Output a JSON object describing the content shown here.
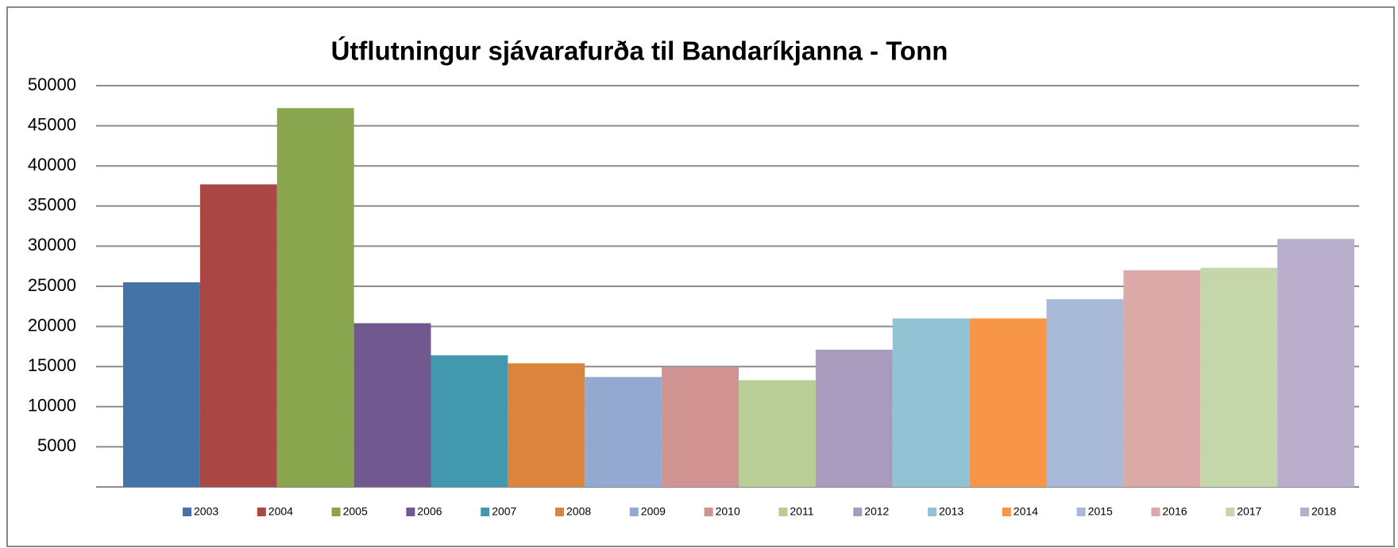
{
  "chart_data": {
    "type": "bar",
    "title": "Útflutningur sjávarafurða til Bandaríkjanna - Tonn",
    "series": [
      {
        "name": "2003",
        "color": "#4572a7",
        "values": [
          25500
        ]
      },
      {
        "name": "2004",
        "color": "#aa4643",
        "values": [
          37700
        ]
      },
      {
        "name": "2005",
        "color": "#89a54e",
        "values": [
          47200
        ]
      },
      {
        "name": "2006",
        "color": "#71588f",
        "values": [
          20400
        ]
      },
      {
        "name": "2007",
        "color": "#4198af",
        "values": [
          16400
        ]
      },
      {
        "name": "2008",
        "color": "#db843d",
        "values": [
          15400
        ]
      },
      {
        "name": "2009",
        "color": "#93a9cf",
        "values": [
          13700
        ]
      },
      {
        "name": "2010",
        "color": "#d19392",
        "values": [
          14900
        ]
      },
      {
        "name": "2011",
        "color": "#b9cd96",
        "values": [
          13300
        ]
      },
      {
        "name": "2012",
        "color": "#a99bbd",
        "values": [
          17100
        ]
      },
      {
        "name": "2013",
        "color": "#91c3d5",
        "values": [
          21000
        ]
      },
      {
        "name": "2014",
        "color": "#f79646",
        "values": [
          21000
        ]
      },
      {
        "name": "2015",
        "color": "#a9b9d8",
        "values": [
          23400
        ]
      },
      {
        "name": "2016",
        "color": "#dba9a8",
        "values": [
          27000
        ]
      },
      {
        "name": "2017",
        "color": "#c6d6ab",
        "values": [
          27300
        ]
      },
      {
        "name": "2018",
        "color": "#b9aecb",
        "values": [
          30900
        ]
      }
    ],
    "ylim": [
      0,
      50000
    ],
    "yticks": [
      5000,
      10000,
      15000,
      20000,
      25000,
      30000,
      35000,
      40000,
      45000,
      50000
    ],
    "grid": true,
    "legend": "bottom"
  }
}
